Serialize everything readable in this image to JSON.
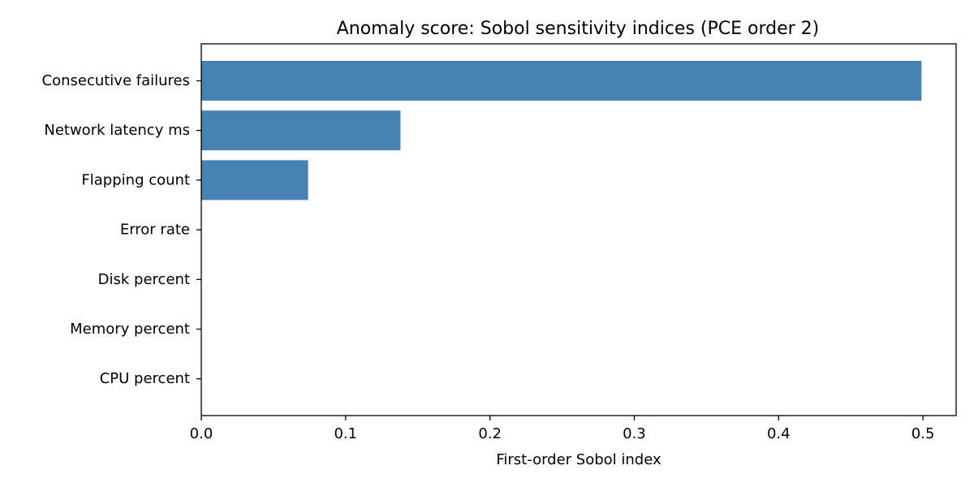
{
  "chart_data": {
    "type": "bar",
    "orientation": "horizontal",
    "title": "Anomaly score: Sobol sensitivity indices (PCE order 2)",
    "xlabel": "First-order Sobol index",
    "ylabel": "",
    "categories": [
      "Consecutive failures",
      "Network latency ms",
      "Flapping count",
      "Error rate",
      "Disk percent",
      "Memory percent",
      "CPU percent"
    ],
    "values": [
      0.499,
      0.138,
      0.074,
      0.0,
      0.0,
      0.0,
      0.0
    ],
    "xlim": [
      0,
      0.523
    ],
    "xticks": [
      0.0,
      0.1,
      0.2,
      0.3,
      0.4,
      0.5
    ],
    "xtick_labels": [
      "0.0",
      "0.1",
      "0.2",
      "0.3",
      "0.4",
      "0.5"
    ],
    "bar_color": "#4682b4",
    "grid": false,
    "legend": "none"
  }
}
